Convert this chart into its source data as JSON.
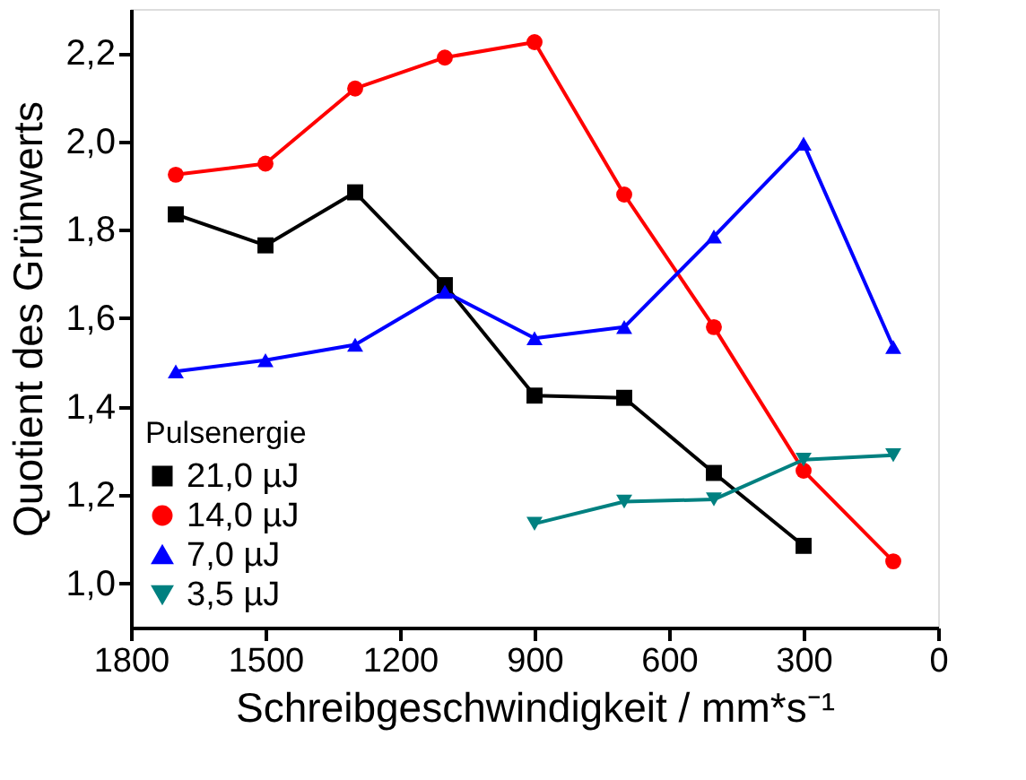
{
  "chart_data": {
    "type": "line",
    "xlabel": "Schreibgeschwindigkeit / mm*s⁻¹",
    "ylabel": "Quotient des Grünwerts",
    "legend_title": "Pulsenergie",
    "legend": "bottom left",
    "grid": false,
    "xlim": [
      1800,
      0
    ],
    "xticks": [
      1800,
      1500,
      1200,
      900,
      600,
      300,
      0
    ],
    "ylim": [
      0.9,
      2.3
    ],
    "yticks": [
      {
        "value": 1.0,
        "label": "1,0"
      },
      {
        "value": 1.2,
        "label": "1,2"
      },
      {
        "value": 1.4,
        "label": "1,4"
      },
      {
        "value": 1.6,
        "label": "1,6"
      },
      {
        "value": 1.8,
        "label": "1,8"
      },
      {
        "value": 2.0,
        "label": "2,0"
      },
      {
        "value": 2.2,
        "label": "2,2"
      }
    ],
    "series": [
      {
        "name": "21,0 µJ",
        "color": "#000000",
        "marker": "square",
        "x": [
          1700,
          1500,
          1300,
          1100,
          900,
          700,
          500,
          300
        ],
        "values": [
          1.835,
          1.765,
          1.885,
          1.675,
          1.425,
          1.42,
          1.25,
          1.085
        ]
      },
      {
        "name": "14,0 µJ",
        "color": "#ff0000",
        "marker": "circle",
        "x": [
          1700,
          1500,
          1300,
          1100,
          900,
          700,
          500,
          300,
          100
        ],
        "values": [
          1.925,
          1.95,
          2.12,
          2.19,
          2.225,
          1.88,
          1.58,
          1.255,
          1.05
        ]
      },
      {
        "name": "7,0 µJ",
        "color": "#0000ff",
        "marker": "triangle",
        "x": [
          1700,
          1500,
          1300,
          1100,
          900,
          700,
          500,
          300,
          100
        ],
        "values": [
          1.48,
          1.505,
          1.54,
          1.66,
          1.555,
          1.58,
          1.785,
          1.995,
          1.535
        ]
      },
      {
        "name": "3,5 µJ",
        "color": "#008080",
        "marker": "triangle-down",
        "x": [
          900,
          700,
          500,
          300,
          100
        ],
        "values": [
          1.135,
          1.185,
          1.19,
          1.28,
          1.29
        ]
      }
    ]
  }
}
